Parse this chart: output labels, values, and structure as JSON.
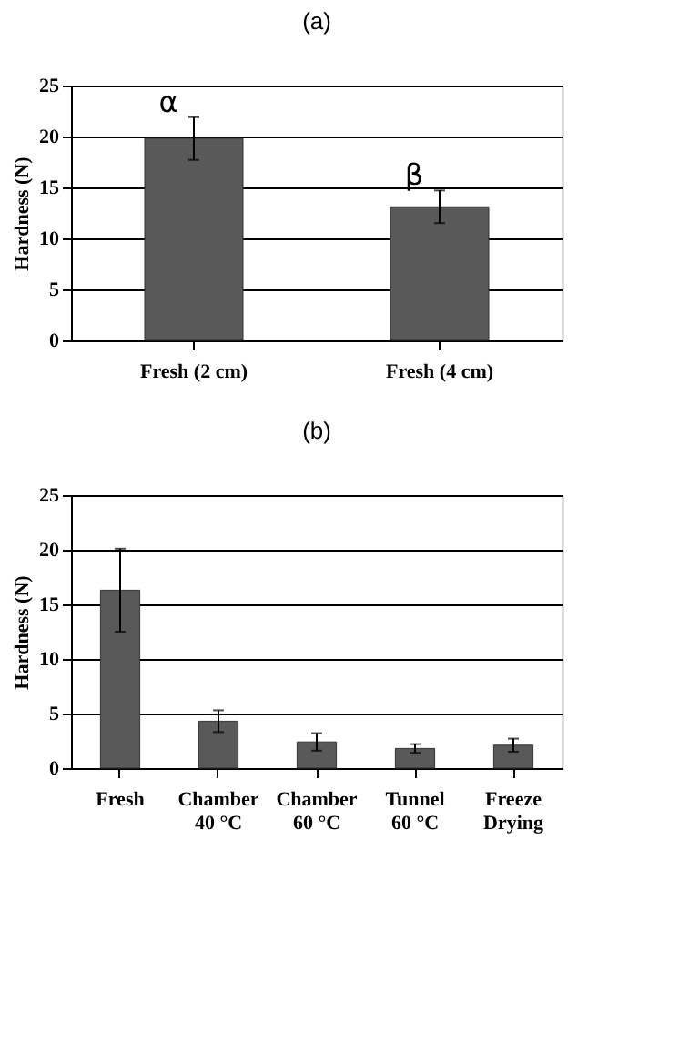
{
  "chart_data": [
    {
      "type": "bar",
      "title": "(a)",
      "ylabel": "Hardness (N)",
      "categories": [
        "Fresh (2 cm)",
        "Fresh (4 cm)"
      ],
      "values": [
        19.8,
        13.1
      ],
      "errors": [
        2.1,
        1.6
      ],
      "color": "#595959",
      "ylim": [
        0,
        25
      ],
      "yticks": [
        0,
        5,
        10,
        15,
        20,
        25
      ],
      "grid": "y",
      "annotations": [
        {
          "text": "α",
          "x": "Fresh (2 cm)",
          "y": 21.9
        },
        {
          "text": "β",
          "x": "Fresh (4 cm)",
          "y": 14.7
        }
      ]
    },
    {
      "type": "bar",
      "title": "(b)",
      "ylabel": "Hardness (N)",
      "categories": [
        "Fresh",
        "Chamber 40 °C",
        "Chamber 60 °C",
        "Tunnel 60 °C",
        "Freeze Drying"
      ],
      "values": [
        16.3,
        4.3,
        2.4,
        1.8,
        2.1
      ],
      "errors": [
        3.8,
        1.0,
        0.8,
        0.4,
        0.6
      ],
      "color": "#595959",
      "ylim": [
        0,
        25
      ],
      "yticks": [
        0,
        5,
        10,
        15,
        20,
        25
      ],
      "grid": "y"
    }
  ]
}
